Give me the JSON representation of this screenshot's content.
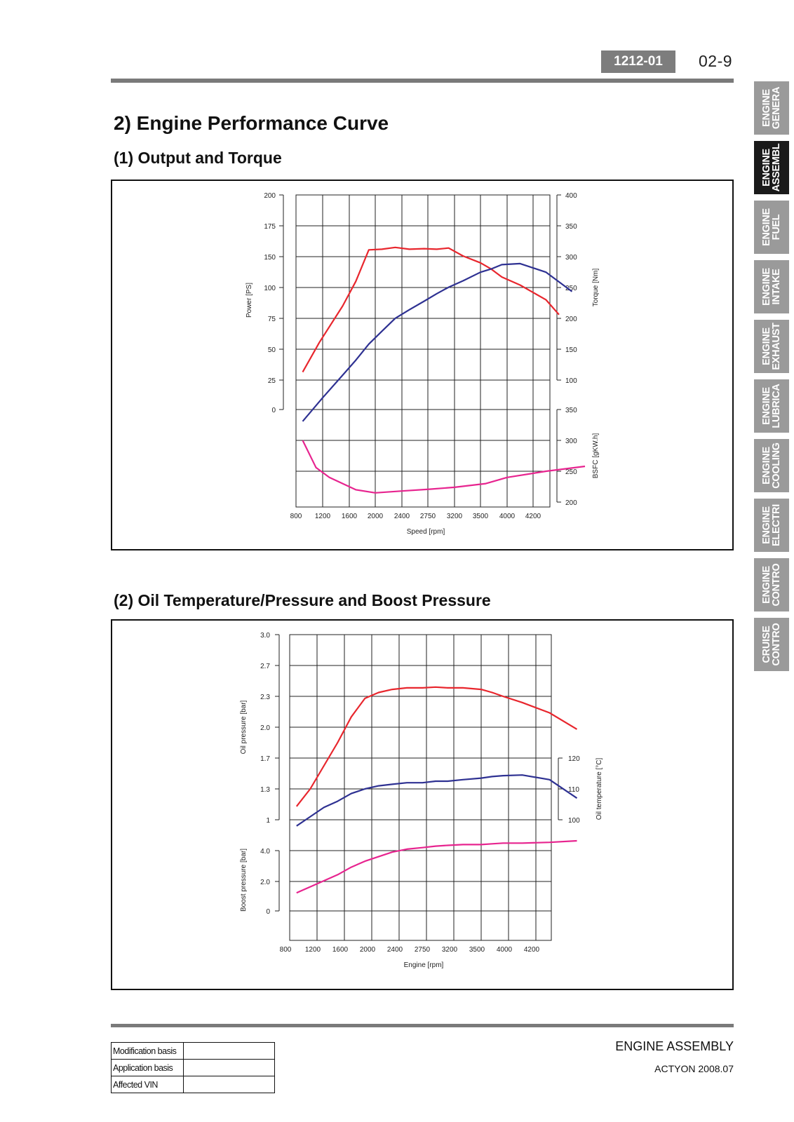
{
  "header": {
    "doc_code": "1212-01",
    "page_number": "02-9"
  },
  "side_tabs": [
    {
      "label": "ENGINE\nGENERA",
      "active": false
    },
    {
      "label": "ENGINE\nASSEMBL",
      "active": true
    },
    {
      "label": "ENGINE\nFUEL",
      "active": false
    },
    {
      "label": "ENGINE\nINTAKE",
      "active": false
    },
    {
      "label": "ENGINE\nEXHAUST",
      "active": false
    },
    {
      "label": "ENGINE\nLUBRICA",
      "active": false
    },
    {
      "label": "ENGINE\nCOOLING",
      "active": false
    },
    {
      "label": "ENGINE\nELECTRI",
      "active": false
    },
    {
      "label": "ENGINE\nCONTRO",
      "active": false
    },
    {
      "label": "CRUISE\nCONTRO",
      "active": false
    }
  ],
  "content": {
    "section_title": "2) Engine Performance Curve",
    "sub1_title": "(1) Output and Torque",
    "sub2_title": "(2) Oil Temperature/Pressure and Boost Pressure"
  },
  "colors": {
    "red": "#e8262d",
    "blue": "#2e3192",
    "magenta": "#e7248f"
  },
  "chart_data": [
    {
      "type": "line",
      "x_ticks": [
        "800",
        "1200",
        "1600",
        "2000",
        "2400",
        "2750",
        "3200",
        "3500",
        "4000",
        "4200"
      ],
      "xlabel": "Speed [rpm]",
      "left_axis": {
        "label": "Power [PS]",
        "ticks": [
          "200",
          "175",
          "150",
          "100",
          "75",
          "50",
          "25",
          "0"
        ]
      },
      "right_axis_top": {
        "label": "Torque [Nm]",
        "ticks": [
          "400",
          "350",
          "300",
          "250",
          "200",
          "150",
          "100"
        ]
      },
      "right_axis_bottom": {
        "label": "BSFC [gKW.h]",
        "ticks": [
          "350",
          "300",
          "250",
          "200"
        ]
      },
      "series": [
        {
          "color": "red",
          "axis": "torque",
          "x": [
            900,
            1150,
            1500,
            1700,
            1900,
            2100,
            2300,
            2500,
            2700,
            2900,
            3100,
            3300,
            3500,
            3700,
            3900,
            4100,
            4300,
            4400
          ],
          "y": [
            113,
            161,
            220,
            260,
            311,
            312,
            315,
            312,
            313,
            312,
            314,
            301,
            290,
            280,
            267,
            254,
            230,
            206
          ]
        },
        {
          "color": "blue",
          "axis": "power",
          "x": [
            900,
            1200,
            1500,
            1700,
            1900,
            2100,
            2300,
            2500,
            2700,
            2900,
            3100,
            3300,
            3500,
            3700,
            3900,
            4100,
            4300,
            4500
          ],
          "y": [
            -11,
            11,
            32,
            46,
            61,
            73,
            85,
            93,
            101,
            108,
            114,
            120,
            128,
            131,
            135,
            136,
            128,
            110
          ]
        },
        {
          "color": "magenta",
          "axis": "bsfc",
          "x": [
            900,
            1100,
            1300,
            1700,
            2000,
            2400,
            2800,
            3200,
            3600,
            4000,
            4300,
            4600
          ],
          "y": [
            300,
            256,
            240,
            220,
            215,
            218,
            221,
            224,
            230,
            240,
            250,
            258
          ]
        }
      ]
    },
    {
      "type": "line",
      "x_ticks": [
        "800",
        "1200",
        "1600",
        "2000",
        "2400",
        "2750",
        "3200",
        "3500",
        "4000",
        "4200"
      ],
      "xlabel": "Engine [rpm]",
      "left_axis_top": {
        "label": "Oil pressure [bar]",
        "ticks": [
          "3.0",
          "2.7",
          "2.3",
          "2.0",
          "1.7",
          "1.3",
          "1"
        ]
      },
      "left_axis_bottom": {
        "label": "Boost pressure [bar]",
        "ticks": [
          "4.0",
          "2.0",
          "0"
        ]
      },
      "right_axis": {
        "label": "Oil temperature [°C]",
        "ticks": [
          "120",
          "110",
          "100"
        ]
      },
      "series": [
        {
          "color": "red",
          "axis": "oil_pressure",
          "x": [
            900,
            1100,
            1300,
            1500,
            1700,
            1900,
            2100,
            2300,
            2500,
            2700,
            2900,
            3100,
            3300,
            3500,
            3700,
            3900,
            4100,
            4300,
            4500
          ],
          "y": [
            1.13,
            1.3,
            1.6,
            1.85,
            2.1,
            2.28,
            2.35,
            2.39,
            2.41,
            2.41,
            2.42,
            2.41,
            2.41,
            2.39,
            2.35,
            2.3,
            2.24,
            2.14,
            1.98
          ]
        },
        {
          "color": "blue",
          "axis": "oil_temperature",
          "x": [
            900,
            1100,
            1300,
            1500,
            1700,
            1900,
            2100,
            2300,
            2500,
            2700,
            2900,
            3100,
            3300,
            3500,
            3700,
            3900,
            4100,
            4300,
            4500
          ],
          "y": [
            98,
            101,
            104,
            106,
            108.5,
            110,
            111,
            111.5,
            112,
            112,
            112.5,
            112.5,
            113,
            113.5,
            114,
            114.3,
            114.5,
            113,
            107
          ]
        },
        {
          "color": "magenta",
          "axis": "boost_pressure",
          "x": [
            900,
            1100,
            1300,
            1500,
            1700,
            1900,
            2100,
            2300,
            2500,
            2700,
            2900,
            3100,
            3300,
            3500,
            3700,
            3900,
            4100,
            4300,
            4500
          ],
          "y": [
            1.2,
            1.6,
            2.0,
            2.4,
            2.9,
            3.3,
            3.6,
            3.9,
            4.1,
            4.2,
            4.3,
            4.35,
            4.4,
            4.4,
            4.45,
            4.5,
            4.5,
            4.55,
            4.65
          ]
        }
      ]
    }
  ],
  "footer": {
    "title": "ENGINE ASSEMBLY",
    "subtitle": "ACTYON 2008.07",
    "table": [
      {
        "label": "Modification basis",
        "value": ""
      },
      {
        "label": "Application basis",
        "value": ""
      },
      {
        "label": "Affected VIN",
        "value": ""
      }
    ]
  }
}
